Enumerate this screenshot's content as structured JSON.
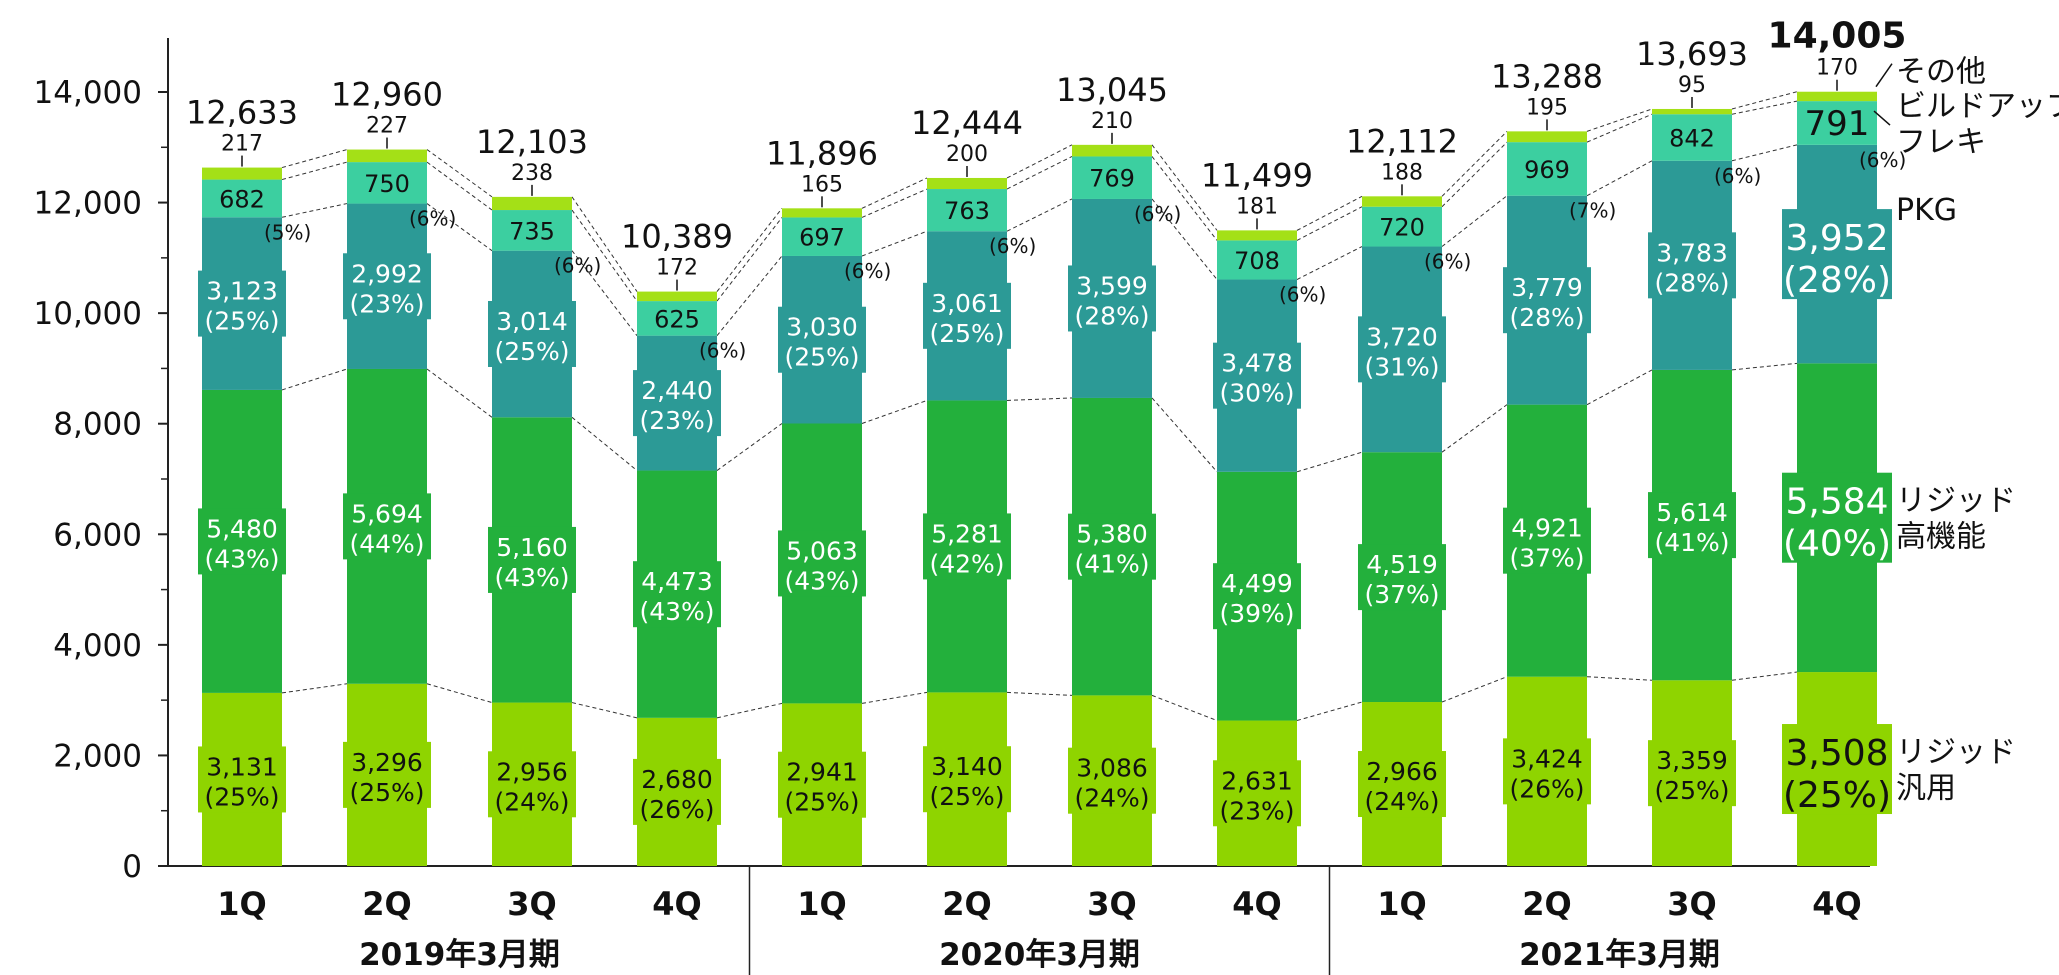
{
  "chart_data": {
    "type": "bar",
    "stacked": true,
    "ylim": [
      0,
      14000
    ],
    "yticks": [
      "0",
      "2,000",
      "4,000",
      "6,000",
      "8,000",
      "10,000",
      "12,000",
      "14,000"
    ],
    "ytick_values": [
      0,
      2000,
      4000,
      6000,
      8000,
      10000,
      12000,
      14000
    ],
    "categories": [
      "1Q",
      "2Q",
      "3Q",
      "4Q",
      "1Q",
      "2Q",
      "3Q",
      "4Q",
      "1Q",
      "2Q",
      "3Q",
      "4Q"
    ],
    "groups": [
      {
        "label": "2019年3月期",
        "count": 4
      },
      {
        "label": "2020年3月期",
        "count": 4
      },
      {
        "label": "2021年3月期",
        "count": 4
      }
    ],
    "totals": [
      "12,633",
      "12,960",
      "12,103",
      "10,389",
      "11,896",
      "12,444",
      "13,045",
      "11,499",
      "12,112",
      "13,288",
      "13,693",
      "14,005"
    ],
    "total_values": [
      12633,
      12960,
      12103,
      10389,
      11896,
      12444,
      13045,
      11499,
      12112,
      13288,
      13693,
      14005
    ],
    "series": [
      {
        "name": "リジッド\n汎用",
        "color": "#8fd400",
        "values": [
          3131,
          3296,
          2956,
          2680,
          2941,
          3140,
          3086,
          2631,
          2966,
          3424,
          3359,
          3508
        ],
        "labels": [
          "3,131",
          "3,296",
          "2,956",
          "2,680",
          "2,941",
          "3,140",
          "3,086",
          "2,631",
          "2,966",
          "3,424",
          "3,359",
          "3,508"
        ],
        "pct": [
          "(25%)",
          "(25%)",
          "(24%)",
          "(26%)",
          "(25%)",
          "(25%)",
          "(24%)",
          "(23%)",
          "(24%)",
          "(26%)",
          "(25%)",
          "(25%)"
        ]
      },
      {
        "name": "リジッド\n高機能",
        "color": "#23b03c",
        "values": [
          5480,
          5694,
          5160,
          4473,
          5063,
          5281,
          5380,
          4499,
          4519,
          4921,
          5614,
          5584
        ],
        "labels": [
          "5,480",
          "5,694",
          "5,160",
          "4,473",
          "5,063",
          "5,281",
          "5,380",
          "4,499",
          "4,519",
          "4,921",
          "5,614",
          "5,584"
        ],
        "pct": [
          "(43%)",
          "(44%)",
          "(43%)",
          "(43%)",
          "(43%)",
          "(42%)",
          "(41%)",
          "(39%)",
          "(37%)",
          "(37%)",
          "(41%)",
          "(40%)"
        ]
      },
      {
        "name": "PKG",
        "color": "#2c9a96",
        "values": [
          3123,
          2992,
          3014,
          2440,
          3030,
          3061,
          3599,
          3478,
          3720,
          3779,
          3783,
          3952
        ],
        "labels": [
          "3,123",
          "2,992",
          "3,014",
          "2,440",
          "3,030",
          "3,061",
          "3,599",
          "3,478",
          "3,720",
          "3,779",
          "3,783",
          "3,952"
        ],
        "pct": [
          "(25%)",
          "(23%)",
          "(25%)",
          "(23%)",
          "(25%)",
          "(25%)",
          "(28%)",
          "(30%)",
          "(31%)",
          "(28%)",
          "(28%)",
          "(28%)"
        ]
      },
      {
        "name": "ビルドアップ\nフレキ",
        "color": "#3ccfa0",
        "values": [
          682,
          750,
          735,
          625,
          697,
          763,
          769,
          708,
          720,
          969,
          842,
          791
        ],
        "labels": [
          "682",
          "750",
          "735",
          "625",
          "697",
          "763",
          "769",
          "708",
          "720",
          "969",
          "842",
          "791"
        ],
        "pct": [
          "(5%)",
          "(6%)",
          "(6%)",
          "(6%)",
          "(6%)",
          "(6%)",
          "(6%)",
          "(6%)",
          "(6%)",
          "(7%)",
          "(6%)",
          "(6%)"
        ]
      },
      {
        "name": "その他",
        "color": "#a4e017",
        "values": [
          217,
          227,
          238,
          172,
          165,
          200,
          210,
          181,
          188,
          195,
          95,
          170
        ],
        "labels": [
          "217",
          "227",
          "238",
          "172",
          "165",
          "200",
          "210",
          "181",
          "188",
          "195",
          "95",
          "170"
        ]
      }
    ],
    "legend_position": "right",
    "grid": false
  }
}
